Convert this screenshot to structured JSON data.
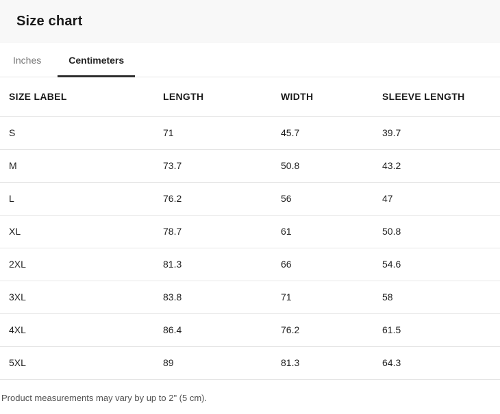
{
  "page": {
    "title": "Size chart"
  },
  "tabs": {
    "inches": {
      "label": "Inches",
      "active": false
    },
    "centimeters": {
      "label": "Centimeters",
      "active": true
    }
  },
  "table": {
    "columns": [
      "SIZE LABEL",
      "LENGTH",
      "WIDTH",
      "SLEEVE LENGTH"
    ],
    "rows": [
      {
        "cells": [
          "S",
          "71",
          "45.7",
          "39.7"
        ]
      },
      {
        "cells": [
          "M",
          "73.7",
          "50.8",
          "43.2"
        ]
      },
      {
        "cells": [
          "L",
          "76.2",
          "56",
          "47"
        ]
      },
      {
        "cells": [
          "XL",
          "78.7",
          "61",
          "50.8"
        ]
      },
      {
        "cells": [
          "2XL",
          "81.3",
          "66",
          "54.6"
        ]
      },
      {
        "cells": [
          "3XL",
          "83.8",
          "71",
          "58"
        ]
      },
      {
        "cells": [
          "4XL",
          "86.4",
          "76.2",
          "61.5"
        ]
      },
      {
        "cells": [
          "5XL",
          "89",
          "81.3",
          "64.3"
        ]
      }
    ]
  },
  "footer": {
    "note": "Product measurements may vary by up to 2\" (5 cm)."
  },
  "colors": {
    "header_background": "#f8f8f8",
    "active_tab_text": "#222222",
    "active_tab_underline": "#2e2e2e",
    "inactive_tab_text": "#757575",
    "divider": "#e5e5e5",
    "body_text": "#1f1f1f",
    "note_text": "#515151"
  }
}
